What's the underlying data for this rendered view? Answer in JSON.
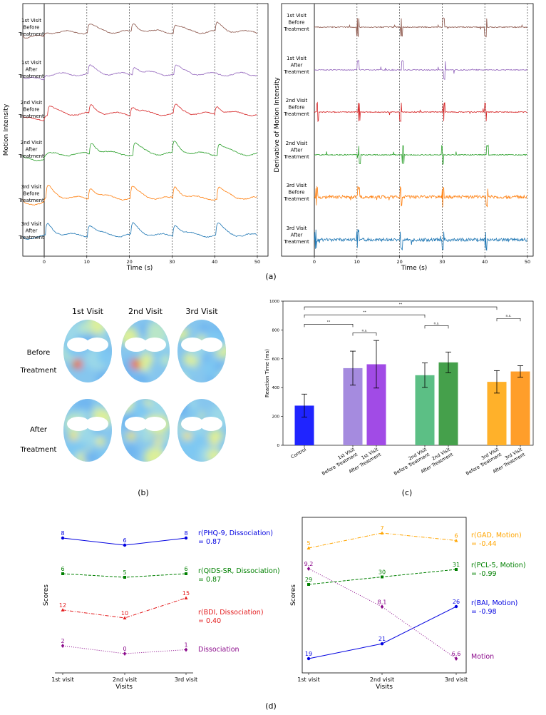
{
  "panels": {
    "a": {
      "label": "(a)",
      "left": {
        "ylabel": "Motion Intensity",
        "xlabel": "Time (s)",
        "xticks": [
          "0",
          "10",
          "20",
          "30",
          "40",
          "50"
        ],
        "traces": [
          {
            "label": [
              "1st Visit",
              "Before",
              "Treatment"
            ],
            "color": "#8c564b"
          },
          {
            "label": [
              "1st Visit",
              "After",
              "Treatment"
            ],
            "color": "#9467bd"
          },
          {
            "label": [
              "2nd Visit",
              "Before",
              "Treatment"
            ],
            "color": "#d62728"
          },
          {
            "label": [
              "2nd Visit",
              "After",
              "Treatment"
            ],
            "color": "#2ca02c"
          },
          {
            "label": [
              "3rd Visit",
              "Before",
              "Treatment"
            ],
            "color": "#ff7f0e"
          },
          {
            "label": [
              "3rd Visit",
              "After",
              "Treatment"
            ],
            "color": "#1f77b4"
          }
        ]
      },
      "right": {
        "ylabel": "Derivative of Motion Intensity",
        "xlabel": "Time (s)",
        "xticks": [
          "0",
          "10",
          "20",
          "30",
          "40",
          "50"
        ],
        "traces": [
          {
            "label": [
              "1st Visit",
              "Before",
              "Treatment"
            ],
            "color": "#8c564b"
          },
          {
            "label": [
              "1st Visit",
              "After",
              "Treatment"
            ],
            "color": "#9467bd"
          },
          {
            "label": [
              "2nd Visit",
              "Before",
              "Treatment"
            ],
            "color": "#d62728"
          },
          {
            "label": [
              "2nd Visit",
              "After",
              "Treatment"
            ],
            "color": "#2ca02c"
          },
          {
            "label": [
              "3rd Visit",
              "Before",
              "Treatment"
            ],
            "color": "#ff7f0e"
          },
          {
            "label": [
              "3rd Visit",
              "After",
              "Treatment"
            ],
            "color": "#1f77b4"
          }
        ]
      }
    },
    "b": {
      "label": "(b)",
      "columns": [
        "1st Visit",
        "2nd Visit",
        "3rd Visit"
      ],
      "rows": [
        [
          "Before",
          "Treatment"
        ],
        [
          "After",
          "Treatment"
        ]
      ]
    },
    "c": {
      "label": "(c)"
    },
    "d": {
      "label": "(d)"
    }
  },
  "chart_data": [
    {
      "type": "bar",
      "id": "reaction-time",
      "title": "",
      "xlabel": "",
      "ylabel": "Reaction Time (ms)",
      "ylim": [
        0,
        1000
      ],
      "yticks": [
        0,
        200,
        400,
        600,
        800,
        1000
      ],
      "bars": [
        {
          "label": [
            "Control"
          ],
          "value": 275,
          "err": 80,
          "color": "#1f24ff"
        },
        {
          "label": [
            "1st Visit",
            "Before Treatment"
          ],
          "value": 535,
          "err": 118,
          "color": "#a58bdf"
        },
        {
          "label": [
            "1st Visit",
            "After Treatment"
          ],
          "value": 562,
          "err": 165,
          "color": "#a14be6"
        },
        {
          "label": [
            "2nd Visit",
            "Before Treatment"
          ],
          "value": 486,
          "err": 85,
          "color": "#5cbf85"
        },
        {
          "label": [
            "2nd Visit",
            "After Treatment"
          ],
          "value": 575,
          "err": 72,
          "color": "#45a04b"
        },
        {
          "label": [
            "3rd Visit",
            "Before Treatment"
          ],
          "value": 440,
          "err": 78,
          "color": "#ffb12a"
        },
        {
          "label": [
            "3rd Visit",
            "After Treatment"
          ],
          "value": 512,
          "err": 40,
          "color": "#ff9e2a"
        }
      ],
      "significance": [
        {
          "from": 0,
          "to": 1,
          "level": 840,
          "label": "**"
        },
        {
          "from": 0,
          "to": 3,
          "level": 905,
          "label": "**"
        },
        {
          "from": 0,
          "to": 5,
          "level": 960,
          "label": "**"
        },
        {
          "from": 1,
          "to": 2,
          "level": 780,
          "label": "n.s."
        },
        {
          "from": 3,
          "to": 4,
          "level": 830,
          "label": "n.s."
        },
        {
          "from": 5,
          "to": 6,
          "level": 880,
          "label": "n.s."
        }
      ]
    },
    {
      "type": "line",
      "id": "scores-dissociation",
      "xlabel": "Visits",
      "ylabel": "Scores",
      "categories": [
        "1st visit",
        "2nd visit",
        "3rd visit"
      ],
      "series": [
        {
          "name": "PHQ-9",
          "values": [
            8,
            6,
            8
          ],
          "color": "#0000e0",
          "style": "solid",
          "marker": "circle",
          "label_lines": [
            "r(PHQ-9, Dissociation)",
            "= 0.87"
          ]
        },
        {
          "name": "QIDS-SR",
          "values": [
            6,
            5,
            6
          ],
          "color": "#008000",
          "style": "dashed",
          "marker": "square",
          "label_lines": [
            "r(QIDS-SR, Dissociation)",
            "= 0.87"
          ]
        },
        {
          "name": "BDI",
          "values": [
            12,
            10,
            15
          ],
          "color": "#e31a1c",
          "style": "dashdot",
          "marker": "triangle",
          "label_lines": [
            "r(BDI, Dissociation)",
            "= 0.40"
          ]
        },
        {
          "name": "Dissociation",
          "values": [
            2,
            0,
            1
          ],
          "color": "#8b0a8b",
          "style": "dotted",
          "marker": "diamond",
          "label_lines": [
            "Dissociation"
          ]
        }
      ]
    },
    {
      "type": "line",
      "id": "scores-motion",
      "xlabel": "Visits",
      "ylabel": "Scores",
      "categories": [
        "1st visit",
        "2nd visit",
        "3rd visit"
      ],
      "series": [
        {
          "name": "GAD",
          "values": [
            5,
            7,
            6
          ],
          "color": "#ffa500",
          "style": "dashdot",
          "marker": "triangle",
          "label_lines": [
            "r(GAD, Motion)",
            "= -0.44"
          ]
        },
        {
          "name": "PCL-5",
          "values": [
            29,
            30,
            31
          ],
          "color": "#008000",
          "style": "dashed",
          "marker": "square",
          "label_lines": [
            "r(PCL-5, Motion)",
            "= -0.99"
          ]
        },
        {
          "name": "BAI",
          "values": [
            19,
            21,
            26
          ],
          "color": "#0000e0",
          "style": "solid",
          "marker": "circle",
          "label_lines": [
            "r(BAI, Motion)",
            "= -0.98"
          ]
        },
        {
          "name": "Motion",
          "values": [
            9.2,
            8.1,
            6.6
          ],
          "color": "#8b0a8b",
          "style": "dotted",
          "marker": "diamond",
          "label_lines": [
            "Motion"
          ]
        }
      ]
    }
  ]
}
